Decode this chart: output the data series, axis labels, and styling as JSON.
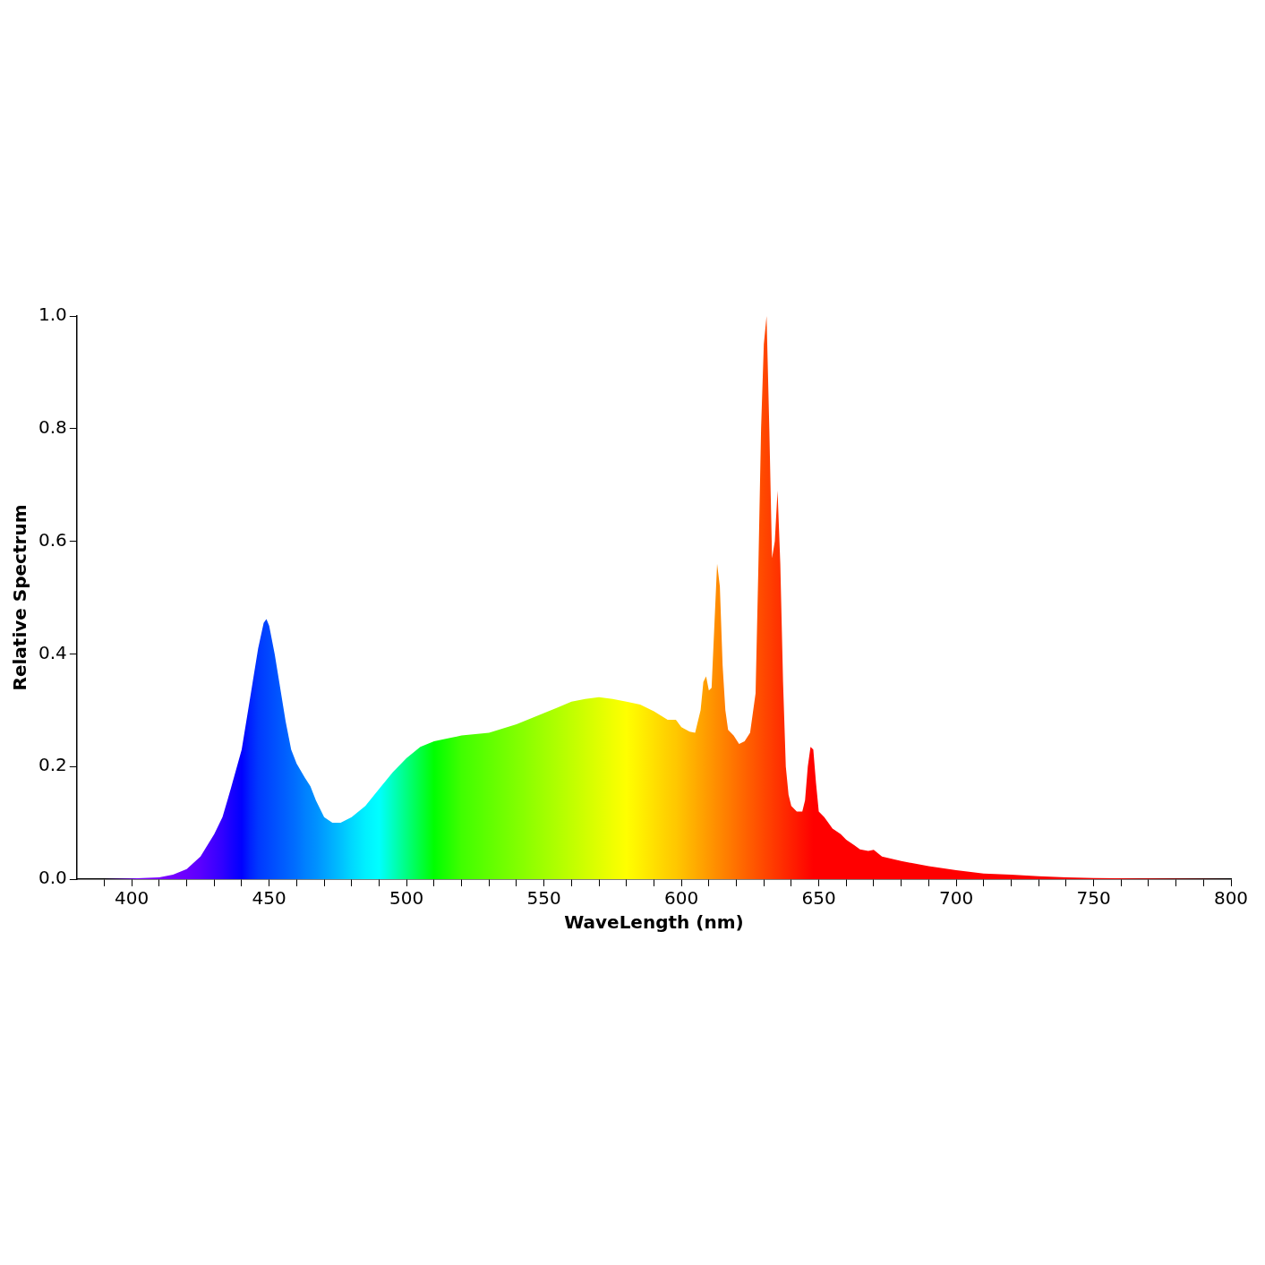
{
  "chart_data": {
    "type": "area",
    "xlabel": "WaveLength (nm)",
    "ylabel": "Relative Spectrum",
    "x": [
      380,
      390,
      400,
      410,
      415,
      420,
      425,
      430,
      433,
      436,
      440,
      443,
      446,
      448,
      449,
      450,
      452,
      454,
      456,
      458,
      460,
      463,
      465,
      467,
      470,
      473,
      476,
      480,
      485,
      490,
      495,
      500,
      505,
      510,
      515,
      520,
      530,
      540,
      550,
      555,
      560,
      565,
      570,
      575,
      580,
      585,
      590,
      595,
      598,
      600,
      603,
      605,
      607,
      608,
      609,
      610,
      611,
      612,
      613,
      614,
      615,
      616,
      617,
      619,
      621,
      623,
      625,
      627,
      628,
      629,
      630,
      631,
      632,
      633,
      634,
      635,
      636,
      637,
      638,
      639,
      640,
      642,
      644,
      645,
      646,
      647,
      648,
      649,
      650,
      652,
      655,
      658,
      660,
      663,
      665,
      668,
      670,
      673,
      680,
      690,
      700,
      710,
      720,
      730,
      740,
      750,
      770,
      800
    ],
    "series": [
      {
        "values": [
          0,
          0,
          0.001,
          0.003,
          0.008,
          0.018,
          0.04,
          0.08,
          0.11,
          0.16,
          0.23,
          0.32,
          0.41,
          0.455,
          0.462,
          0.45,
          0.4,
          0.34,
          0.28,
          0.23,
          0.205,
          0.18,
          0.165,
          0.14,
          0.11,
          0.1,
          0.1,
          0.11,
          0.13,
          0.16,
          0.19,
          0.215,
          0.235,
          0.245,
          0.25,
          0.255,
          0.26,
          0.275,
          0.295,
          0.305,
          0.315,
          0.32,
          0.323,
          0.32,
          0.315,
          0.31,
          0.298,
          0.283,
          0.283,
          0.27,
          0.262,
          0.26,
          0.3,
          0.35,
          0.36,
          0.335,
          0.34,
          0.45,
          0.56,
          0.52,
          0.38,
          0.3,
          0.265,
          0.255,
          0.24,
          0.245,
          0.26,
          0.33,
          0.55,
          0.8,
          0.95,
          1.0,
          0.8,
          0.57,
          0.6,
          0.69,
          0.56,
          0.35,
          0.2,
          0.15,
          0.13,
          0.12,
          0.12,
          0.14,
          0.2,
          0.235,
          0.23,
          0.17,
          0.12,
          0.11,
          0.09,
          0.08,
          0.07,
          0.06,
          0.053,
          0.05,
          0.052,
          0.04,
          0.032,
          0.023,
          0.016,
          0.01,
          0.008,
          0.005,
          0.003,
          0.002,
          0.001,
          0
        ],
        "colors": [
          "#6a00ff",
          "#7000ff",
          "#7800ff",
          "#7a00ff",
          "#7400ff",
          "#6a00ff",
          "#5a00ff",
          "#4000ff",
          "#3000ff",
          "#1a00ff",
          "#0000ff",
          "#0020ff",
          "#0038ff",
          "#0040ff",
          "#0044ff",
          "#0048ff",
          "#0050ff",
          "#0058ff",
          "#0060ff",
          "#0068ff",
          "#0070ff",
          "#0080ff",
          "#0088ff",
          "#0090ff",
          "#00a0ff",
          "#00b0ff",
          "#00c0ff",
          "#00d8ff",
          "#00f0ff",
          "#00ffff",
          "#00ffc0",
          "#00ff80",
          "#00ff40",
          "#00ff00",
          "#20ff00",
          "#40ff00",
          "#60ff00",
          "#80ff00",
          "#a0ff00",
          "#b0ff00",
          "#c0ff00",
          "#d0ff00",
          "#e0ff00",
          "#f0ff00",
          "#ffff00",
          "#fff000",
          "#ffe000",
          "#ffd000",
          "#ffc800",
          "#ffc000",
          "#ffb400",
          "#ffac00",
          "#ffa400",
          "#ffa000",
          "#ff9c00",
          "#ff9800",
          "#ff9400",
          "#ff9000",
          "#ff8c00",
          "#ff8800",
          "#ff8400",
          "#ff8000",
          "#ff7c00",
          "#ff7400",
          "#ff6c00",
          "#ff6400",
          "#ff5c00",
          "#ff5400",
          "#ff5000",
          "#ff4c00",
          "#ff4800",
          "#ff4400",
          "#ff4000",
          "#ff3c00",
          "#ff3800",
          "#ff3400",
          "#ff3000",
          "#ff2c00",
          "#ff2800",
          "#ff2400",
          "#ff2000",
          "#ff1800",
          "#ff1000",
          "#ff0c00",
          "#ff0800",
          "#ff0400",
          "#ff0000",
          "#ff0000",
          "#ff0000",
          "#ff0000",
          "#ff0000",
          "#ff0000",
          "#ff0000",
          "#ff0000",
          "#ff0000",
          "#ff0000",
          "#ff0000",
          "#ff0000",
          "#ff0000",
          "#ff0000",
          "#ff0000",
          "#ff0000",
          "#fc0000",
          "#f80000",
          "#f40000",
          "#f00000",
          "#e00000",
          "#c00000"
        ]
      }
    ],
    "xlim": [
      380,
      800
    ],
    "xticks": [
      {
        "value": 390,
        "label": null
      },
      400,
      {
        "value": 410,
        "label": null
      },
      {
        "value": 420,
        "label": null
      },
      {
        "value": 430,
        "label": null
      },
      {
        "value": 440,
        "label": null
      },
      450,
      {
        "value": 460,
        "label": null
      },
      {
        "value": 470,
        "label": null
      },
      {
        "value": 480,
        "label": null
      },
      {
        "value": 490,
        "label": null
      },
      500,
      {
        "value": 510,
        "label": null
      },
      {
        "value": 520,
        "label": null
      },
      {
        "value": 530,
        "label": null
      },
      {
        "value": 540,
        "label": null
      },
      550,
      {
        "value": 560,
        "label": null
      },
      {
        "value": 570,
        "label": null
      },
      {
        "value": 580,
        "label": null
      },
      {
        "value": 590,
        "label": null
      },
      600,
      {
        "value": 610,
        "label": null
      },
      {
        "value": 620,
        "label": null
      },
      {
        "value": 630,
        "label": null
      },
      {
        "value": 640,
        "label": null
      },
      650,
      {
        "value": 660,
        "label": null
      },
      {
        "value": 670,
        "label": null
      },
      {
        "value": 680,
        "label": null
      },
      {
        "value": 690,
        "label": null
      },
      700,
      {
        "value": 710,
        "label": null
      },
      {
        "value": 720,
        "label": null
      },
      {
        "value": 730,
        "label": null
      },
      {
        "value": 740,
        "label": null
      },
      750,
      {
        "value": 760,
        "label": null
      },
      {
        "value": 770,
        "label": null
      },
      {
        "value": 780,
        "label": null
      },
      {
        "value": 790,
        "label": null
      },
      800
    ],
    "ylim": [
      0,
      1
    ],
    "yticks": [
      {
        "value": 0,
        "label": "0.0"
      },
      {
        "value": 0.2,
        "label": "0.2"
      },
      {
        "value": 0.4,
        "label": "0.4"
      },
      {
        "value": 0.6,
        "label": "0.6"
      },
      {
        "value": 0.8,
        "label": "0.8"
      },
      {
        "value": 1,
        "label": "1.0"
      }
    ],
    "grid": false,
    "legend": false
  }
}
